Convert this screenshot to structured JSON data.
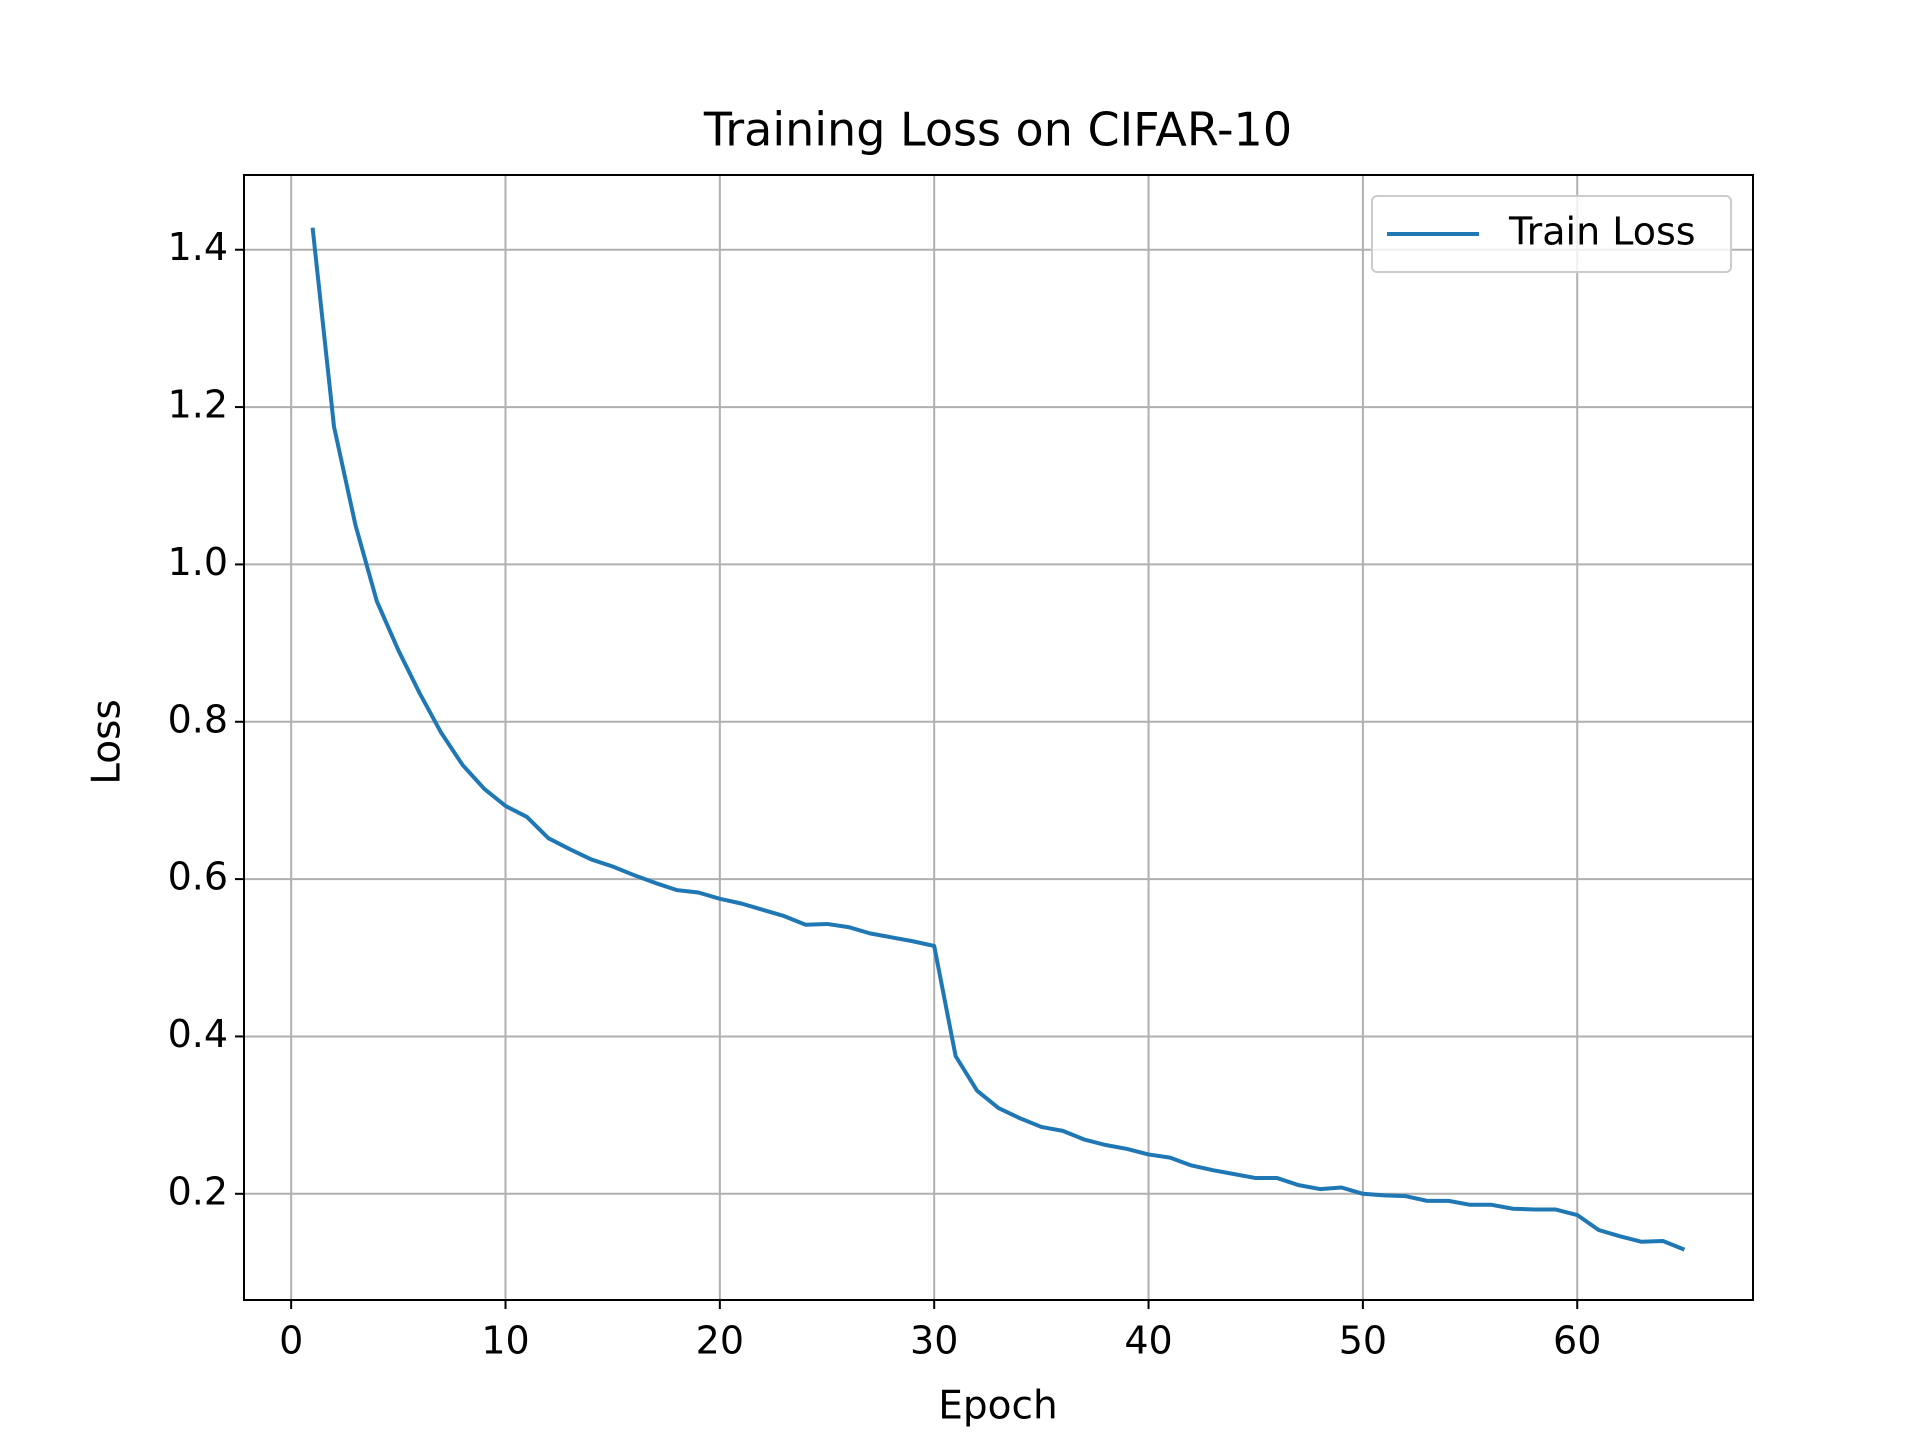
{
  "chart_data": {
    "type": "line",
    "title": "Training Loss on CIFAR-10",
    "x_label": "Epoch",
    "y_label": "Loss",
    "x": [
      1,
      2,
      3,
      4,
      5,
      6,
      7,
      8,
      9,
      10,
      11,
      12,
      13,
      14,
      15,
      16,
      17,
      18,
      19,
      20,
      21,
      22,
      23,
      24,
      25,
      26,
      27,
      28,
      29,
      30,
      31,
      32,
      33,
      34,
      35,
      36,
      37,
      38,
      39,
      40,
      41,
      42,
      43,
      44,
      45,
      46,
      47,
      48,
      49,
      50,
      51,
      52,
      53,
      54,
      55,
      56,
      57,
      58,
      59,
      60,
      61,
      62,
      63,
      64,
      65
    ],
    "series": [
      {
        "name": "Train Loss",
        "color": "#1f77b4",
        "values": [
          1.428,
          1.175,
          1.05,
          0.953,
          0.891,
          0.836,
          0.786,
          0.745,
          0.715,
          0.693,
          0.679,
          0.652,
          0.638,
          0.625,
          0.616,
          0.605,
          0.595,
          0.586,
          0.583,
          0.575,
          0.569,
          0.561,
          0.553,
          0.542,
          0.543,
          0.539,
          0.531,
          0.526,
          0.521,
          0.515,
          0.375,
          0.331,
          0.309,
          0.296,
          0.285,
          0.28,
          0.269,
          0.262,
          0.257,
          0.25,
          0.246,
          0.236,
          0.23,
          0.225,
          0.22,
          0.22,
          0.211,
          0.206,
          0.208,
          0.2,
          0.198,
          0.197,
          0.191,
          0.191,
          0.186,
          0.186,
          0.181,
          0.18,
          0.18,
          0.173,
          0.154,
          0.146,
          0.139,
          0.14,
          0.129
        ]
      }
    ],
    "xlim": [
      -2.2,
      68.2
    ],
    "ylim": [
      0.065,
      1.495
    ],
    "xticks": [
      0,
      10,
      20,
      30,
      40,
      50,
      60
    ],
    "yticks": [
      0.2,
      0.4,
      0.6,
      0.8,
      {
        "value": 1,
        "label": "1.0"
      },
      1.2,
      1.4
    ],
    "grid": true,
    "legend": "upper right"
  }
}
